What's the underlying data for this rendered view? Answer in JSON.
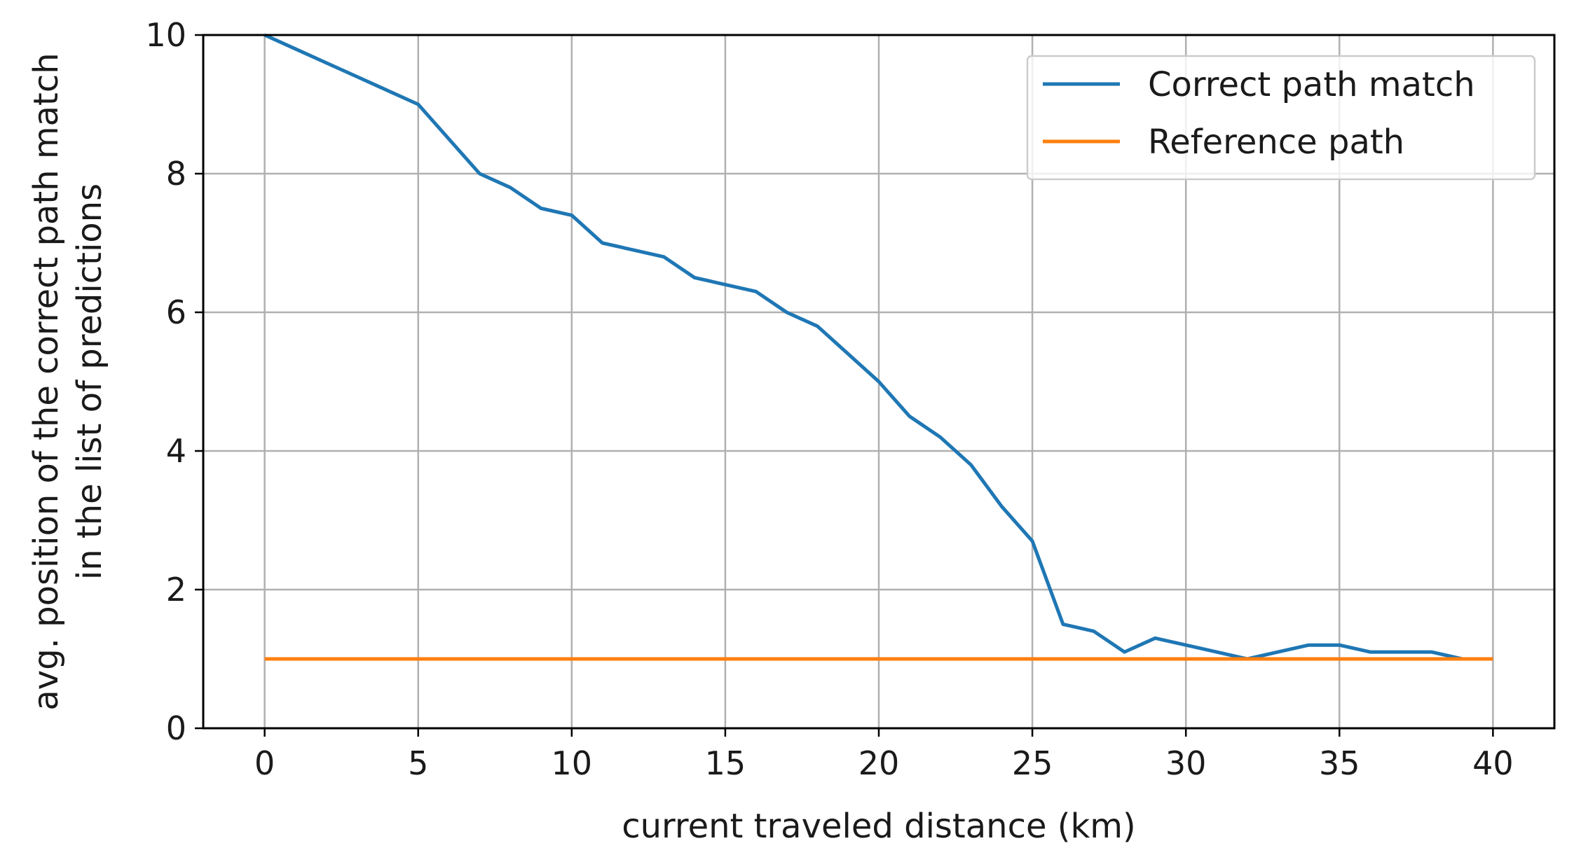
{
  "chart_data": {
    "type": "line",
    "title": "",
    "xlabel": "current traveled distance (km)",
    "ylabel_lines": [
      "avg. position of the correct path match",
      "in the list of predictions"
    ],
    "xlim": [
      -2,
      42
    ],
    "ylim": [
      0,
      10
    ],
    "xticks": [
      0,
      5,
      10,
      15,
      20,
      25,
      30,
      35,
      40
    ],
    "yticks": [
      0,
      2,
      4,
      6,
      8,
      10
    ],
    "grid": true,
    "legend_position": "upper right",
    "series": [
      {
        "name": "Correct path match",
        "color": "#1f77b4",
        "x": [
          0,
          1,
          2,
          3,
          4,
          5,
          6,
          7,
          8,
          9,
          10,
          11,
          12,
          13,
          14,
          15,
          16,
          17,
          18,
          19,
          20,
          21,
          22,
          23,
          24,
          25,
          26,
          27,
          28,
          29,
          30,
          31,
          32,
          33,
          34,
          35,
          36,
          37,
          38,
          39,
          40
        ],
        "y": [
          10,
          9.8,
          9.6,
          9.4,
          9.2,
          9.0,
          8.5,
          8.0,
          7.8,
          7.5,
          7.4,
          7.0,
          6.9,
          6.8,
          6.5,
          6.4,
          6.3,
          6.0,
          5.8,
          5.4,
          5.0,
          4.5,
          4.2,
          3.8,
          3.2,
          2.7,
          1.5,
          1.4,
          1.1,
          1.3,
          1.2,
          1.1,
          1.0,
          1.1,
          1.2,
          1.2,
          1.1,
          1.1,
          1.1,
          1.0,
          1.0
        ]
      },
      {
        "name": "Reference path",
        "color": "#ff7f0e",
        "x": [
          0,
          40
        ],
        "y": [
          1,
          1
        ]
      }
    ]
  }
}
